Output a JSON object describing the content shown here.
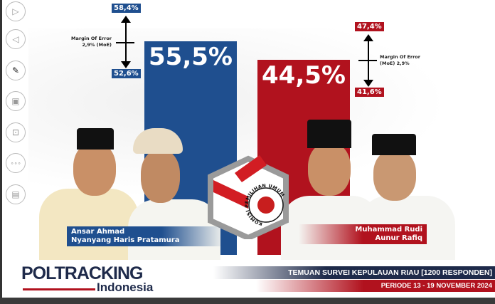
{
  "sidebar": {
    "items": [
      {
        "icon": "next-slide-icon",
        "glyph": "▷"
      },
      {
        "icon": "previous-slide-icon",
        "glyph": "◁"
      },
      {
        "icon": "pen-icon",
        "glyph": "✎"
      },
      {
        "icon": "slides-grid-icon",
        "glyph": "▣"
      },
      {
        "icon": "pointer-screen-icon",
        "glyph": "⊡"
      },
      {
        "icon": "more-options-icon",
        "glyph": "∘∘∘"
      },
      {
        "icon": "presenter-view-icon",
        "glyph": "▤"
      }
    ]
  },
  "candidates": [
    {
      "percent": "55,5%",
      "upper": "58,4%",
      "lower": "52,6%",
      "moe_line1": "Margin Of Error",
      "moe_line2": "2,9% (MoE)",
      "name_line1": "Ansar Ahmad",
      "name_line2": "Nyanyang Haris Pratamura",
      "color": "#1f4f8f",
      "value": 55.5
    },
    {
      "percent": "44,5%",
      "upper": "47,4%",
      "lower": "41,6%",
      "moe_line1": "Margin Of Error",
      "moe_line2": "(MoE) 2,9%",
      "name_line1": "Muhammad Rudi",
      "name_line2": "Aunur Rafiq",
      "color": "#b1121e",
      "value": 44.5
    }
  ],
  "ballot_box_label": "KOMISI PEMILIHAN UMUM",
  "logo": {
    "main": "POLTRACKING",
    "sub": "Indonesia"
  },
  "footer": {
    "title": "TEMUAN SURVEI KEPULAUAN RIAU [1200 RESPONDEN]",
    "period": "PERIODE 13 - 19 NOVEMBER 2024"
  }
}
